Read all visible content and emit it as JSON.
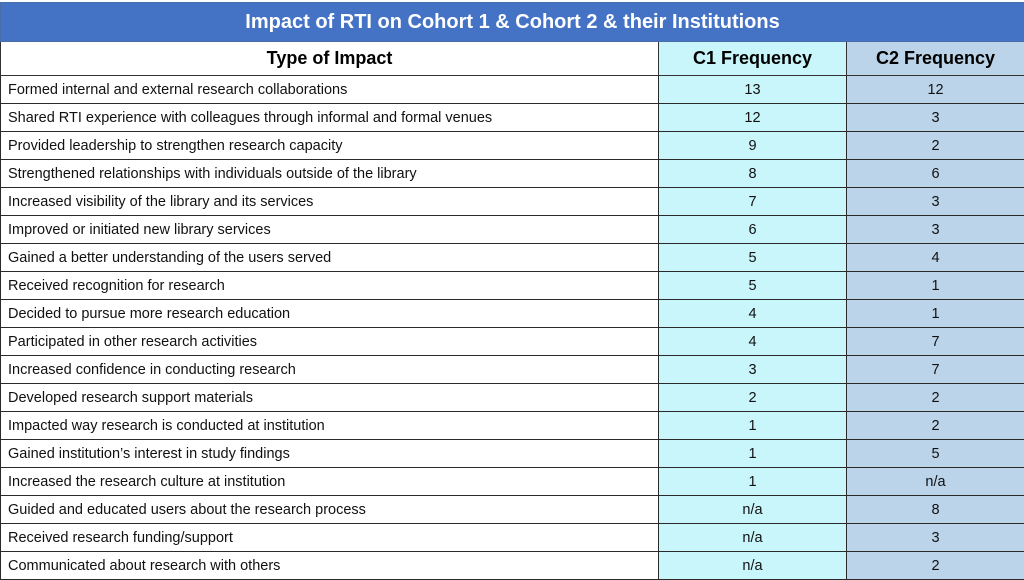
{
  "table": {
    "title": "Impact of RTI on Cohort 1 & Cohort 2 & their Institutions",
    "headers": {
      "type": "Type of Impact",
      "c1": "C1 Frequency",
      "c2": "C2 Frequency"
    },
    "colors": {
      "title_bg": "#4472c4",
      "c1_bg": "#c8f6fb",
      "c2_bg": "#bcd4ea"
    },
    "rows": [
      {
        "type": "Formed internal and external research collaborations",
        "c1": "13",
        "c2": "12"
      },
      {
        "type": "Shared RTI experience with colleagues through informal and formal venues",
        "c1": "12",
        "c2": "3"
      },
      {
        "type": "Provided leadership to strengthen research capacity",
        "c1": "9",
        "c2": "2"
      },
      {
        "type": "Strengthened relationships with individuals outside of the library",
        "c1": "8",
        "c2": "6"
      },
      {
        "type": "Increased visibility of the library and its services",
        "c1": "7",
        "c2": "3"
      },
      {
        "type": "Improved or initiated new library services",
        "c1": "6",
        "c2": "3"
      },
      {
        "type": "Gained a better understanding of the users served",
        "c1": "5",
        "c2": "4"
      },
      {
        "type": "Received recognition for research",
        "c1": "5",
        "c2": "1"
      },
      {
        "type": "Decided to pursue more research education",
        "c1": "4",
        "c2": "1"
      },
      {
        "type": "Participated in other research activities",
        "c1": "4",
        "c2": "7"
      },
      {
        "type": "Increased confidence in conducting research",
        "c1": "3",
        "c2": "7"
      },
      {
        "type": "Developed research support materials",
        "c1": "2",
        "c2": "2"
      },
      {
        "type": "Impacted way research is conducted at institution",
        "c1": "1",
        "c2": "2"
      },
      {
        "type": "Gained institution’s interest in study findings",
        "c1": "1",
        "c2": "5"
      },
      {
        "type": "Increased the research culture at institution",
        "c1": "1",
        "c2": "n/a"
      },
      {
        "type": "Guided and educated users about the research process",
        "c1": "n/a",
        "c2": "8"
      },
      {
        "type": "Received research funding/support",
        "c1": "n/a",
        "c2": "3"
      },
      {
        "type": "Communicated about research with others",
        "c1": "n/a",
        "c2": "2"
      }
    ]
  }
}
